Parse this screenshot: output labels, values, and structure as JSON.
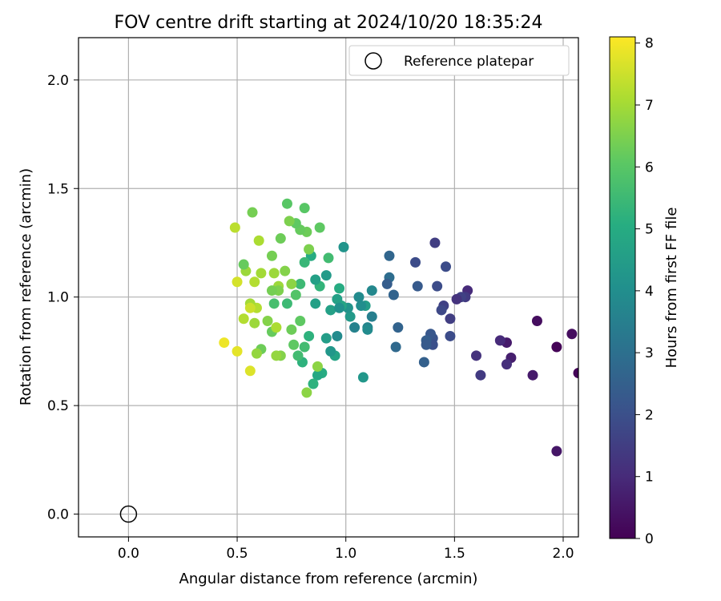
{
  "chart_data": {
    "type": "scatter",
    "title": "FOV centre drift starting at 2024/10/20 18:35:24",
    "xlabel": "Angular distance from reference (arcmin)",
    "ylabel": "Rotation from reference (arcmin)",
    "xlim": [
      -0.23,
      2.07
    ],
    "ylim": [
      -0.105,
      2.195
    ],
    "xticks": [
      "0.0",
      "0.5",
      "1.0",
      "1.5",
      "2.0"
    ],
    "xtick_values": [
      0.0,
      0.5,
      1.0,
      1.5,
      2.0
    ],
    "yticks": [
      "0.0",
      "0.5",
      "1.0",
      "1.5",
      "2.0"
    ],
    "ytick_values": [
      0.0,
      0.5,
      1.0,
      1.5,
      2.0
    ],
    "grid": true,
    "legend": {
      "position": "top-right",
      "label": "Reference platepar"
    },
    "reference_point": {
      "x": 0.0,
      "y": 0.0
    },
    "colorbar": {
      "label": "Hours from first FF file",
      "min": 0,
      "max": 8.1,
      "colormap": "viridis",
      "ticks": [
        "0",
        "1",
        "2",
        "3",
        "4",
        "5",
        "6",
        "7",
        "8"
      ],
      "tick_values": [
        0,
        1,
        2,
        3,
        4,
        5,
        6,
        7,
        8
      ]
    },
    "points": [
      {
        "x": 2.07,
        "y": 0.65,
        "c": 0.1
      },
      {
        "x": 2.04,
        "y": 0.83,
        "c": 0.3
      },
      {
        "x": 1.97,
        "y": 0.77,
        "c": 0.05
      },
      {
        "x": 1.97,
        "y": 0.29,
        "c": 0.5
      },
      {
        "x": 1.88,
        "y": 0.89,
        "c": 0.3
      },
      {
        "x": 1.86,
        "y": 0.64,
        "c": 0.6
      },
      {
        "x": 1.76,
        "y": 0.72,
        "c": 0.7
      },
      {
        "x": 1.74,
        "y": 0.79,
        "c": 0.6
      },
      {
        "x": 1.71,
        "y": 0.8,
        "c": 1.0
      },
      {
        "x": 1.74,
        "y": 0.69,
        "c": 1.1
      },
      {
        "x": 1.62,
        "y": 0.64,
        "c": 1.4
      },
      {
        "x": 1.6,
        "y": 0.73,
        "c": 1.2
      },
      {
        "x": 1.56,
        "y": 1.03,
        "c": 1.0
      },
      {
        "x": 1.55,
        "y": 1.0,
        "c": 1.4
      },
      {
        "x": 1.53,
        "y": 1.0,
        "c": 1.6
      },
      {
        "x": 1.51,
        "y": 0.99,
        "c": 1.2
      },
      {
        "x": 1.48,
        "y": 0.82,
        "c": 1.9
      },
      {
        "x": 1.48,
        "y": 0.9,
        "c": 1.5
      },
      {
        "x": 1.45,
        "y": 0.96,
        "c": 1.6
      },
      {
        "x": 1.44,
        "y": 0.94,
        "c": 1.8
      },
      {
        "x": 1.46,
        "y": 1.14,
        "c": 1.9
      },
      {
        "x": 1.41,
        "y": 1.25,
        "c": 1.5
      },
      {
        "x": 1.42,
        "y": 1.05,
        "c": 1.9
      },
      {
        "x": 1.4,
        "y": 0.81,
        "c": 2.1
      },
      {
        "x": 1.4,
        "y": 0.78,
        "c": 2.0
      },
      {
        "x": 1.39,
        "y": 0.83,
        "c": 2.2
      },
      {
        "x": 1.37,
        "y": 0.8,
        "c": 2.4
      },
      {
        "x": 1.37,
        "y": 0.78,
        "c": 2.3
      },
      {
        "x": 1.36,
        "y": 0.7,
        "c": 2.5
      },
      {
        "x": 1.32,
        "y": 1.16,
        "c": 1.9
      },
      {
        "x": 1.33,
        "y": 1.05,
        "c": 2.3
      },
      {
        "x": 1.24,
        "y": 0.86,
        "c": 2.6
      },
      {
        "x": 1.23,
        "y": 0.77,
        "c": 2.8
      },
      {
        "x": 1.22,
        "y": 1.01,
        "c": 2.6
      },
      {
        "x": 1.2,
        "y": 1.19,
        "c": 2.7
      },
      {
        "x": 1.2,
        "y": 1.09,
        "c": 2.9
      },
      {
        "x": 1.19,
        "y": 1.06,
        "c": 2.4
      },
      {
        "x": 1.12,
        "y": 1.03,
        "c": 3.8
      },
      {
        "x": 1.12,
        "y": 0.91,
        "c": 3.5
      },
      {
        "x": 1.1,
        "y": 0.86,
        "c": 3.7
      },
      {
        "x": 1.1,
        "y": 0.85,
        "c": 3.9
      },
      {
        "x": 1.09,
        "y": 0.96,
        "c": 4.5
      },
      {
        "x": 1.07,
        "y": 0.96,
        "c": 4.0
      },
      {
        "x": 1.08,
        "y": 0.63,
        "c": 4.3
      },
      {
        "x": 1.06,
        "y": 1.0,
        "c": 3.9
      },
      {
        "x": 1.04,
        "y": 0.86,
        "c": 3.6
      },
      {
        "x": 1.02,
        "y": 0.91,
        "c": 4.4
      },
      {
        "x": 1.01,
        "y": 0.95,
        "c": 4.2
      },
      {
        "x": 0.99,
        "y": 1.23,
        "c": 4.2
      },
      {
        "x": 0.98,
        "y": 0.96,
        "c": 4.8
      },
      {
        "x": 0.97,
        "y": 1.04,
        "c": 5.0
      },
      {
        "x": 0.96,
        "y": 0.99,
        "c": 4.6
      },
      {
        "x": 0.96,
        "y": 0.82,
        "c": 3.9
      },
      {
        "x": 0.95,
        "y": 0.73,
        "c": 4.7
      },
      {
        "x": 0.93,
        "y": 0.75,
        "c": 4.3
      },
      {
        "x": 0.93,
        "y": 0.94,
        "c": 4.6
      },
      {
        "x": 0.91,
        "y": 1.1,
        "c": 4.4
      },
      {
        "x": 0.91,
        "y": 0.81,
        "c": 4.5
      },
      {
        "x": 0.92,
        "y": 1.18,
        "c": 5.6
      },
      {
        "x": 0.89,
        "y": 0.65,
        "c": 5.0
      },
      {
        "x": 0.87,
        "y": 0.64,
        "c": 4.9
      },
      {
        "x": 0.88,
        "y": 1.05,
        "c": 5.3
      },
      {
        "x": 0.86,
        "y": 1.08,
        "c": 4.6
      },
      {
        "x": 0.86,
        "y": 0.97,
        "c": 4.6
      },
      {
        "x": 0.87,
        "y": 0.68,
        "c": 6.7
      },
      {
        "x": 0.88,
        "y": 1.32,
        "c": 6.1
      },
      {
        "x": 0.85,
        "y": 0.6,
        "c": 5.2
      },
      {
        "x": 0.83,
        "y": 0.82,
        "c": 5.2
      },
      {
        "x": 0.84,
        "y": 1.19,
        "c": 5.0
      },
      {
        "x": 0.83,
        "y": 1.22,
        "c": 6.5
      },
      {
        "x": 0.82,
        "y": 1.3,
        "c": 6.3
      },
      {
        "x": 0.81,
        "y": 1.41,
        "c": 6.0
      },
      {
        "x": 0.81,
        "y": 1.16,
        "c": 5.4
      },
      {
        "x": 0.81,
        "y": 0.77,
        "c": 5.6
      },
      {
        "x": 0.8,
        "y": 0.7,
        "c": 5.2
      },
      {
        "x": 0.82,
        "y": 0.56,
        "c": 6.7
      },
      {
        "x": 0.79,
        "y": 1.31,
        "c": 6.2
      },
      {
        "x": 0.79,
        "y": 1.06,
        "c": 5.5
      },
      {
        "x": 0.79,
        "y": 0.89,
        "c": 6.1
      },
      {
        "x": 0.78,
        "y": 0.73,
        "c": 5.6
      },
      {
        "x": 0.77,
        "y": 1.34,
        "c": 6.1
      },
      {
        "x": 0.77,
        "y": 1.01,
        "c": 5.9
      },
      {
        "x": 0.76,
        "y": 0.78,
        "c": 6.1
      },
      {
        "x": 0.75,
        "y": 0.85,
        "c": 6.3
      },
      {
        "x": 0.74,
        "y": 1.35,
        "c": 6.5
      },
      {
        "x": 0.73,
        "y": 1.43,
        "c": 6.0
      },
      {
        "x": 0.73,
        "y": 0.97,
        "c": 5.5
      },
      {
        "x": 0.72,
        "y": 1.12,
        "c": 6.6
      },
      {
        "x": 0.7,
        "y": 1.27,
        "c": 6.3
      },
      {
        "x": 0.7,
        "y": 0.73,
        "c": 6.6
      },
      {
        "x": 0.69,
        "y": 1.05,
        "c": 6.9
      },
      {
        "x": 0.69,
        "y": 1.03,
        "c": 6.5
      },
      {
        "x": 0.67,
        "y": 1.11,
        "c": 6.9
      },
      {
        "x": 0.67,
        "y": 0.97,
        "c": 5.7
      },
      {
        "x": 0.66,
        "y": 1.19,
        "c": 6.4
      },
      {
        "x": 0.66,
        "y": 1.03,
        "c": 6.4
      },
      {
        "x": 0.66,
        "y": 0.84,
        "c": 6.2
      },
      {
        "x": 0.64,
        "y": 0.89,
        "c": 6.6
      },
      {
        "x": 0.61,
        "y": 1.11,
        "c": 7.0
      },
      {
        "x": 0.61,
        "y": 0.76,
        "c": 6.3
      },
      {
        "x": 0.6,
        "y": 1.26,
        "c": 7.1
      },
      {
        "x": 0.59,
        "y": 0.74,
        "c": 6.8
      },
      {
        "x": 0.59,
        "y": 0.95,
        "c": 7.2
      },
      {
        "x": 0.58,
        "y": 0.88,
        "c": 6.9
      },
      {
        "x": 0.58,
        "y": 1.07,
        "c": 7.2
      },
      {
        "x": 0.57,
        "y": 1.39,
        "c": 6.4
      },
      {
        "x": 0.56,
        "y": 0.97,
        "c": 7.0
      },
      {
        "x": 0.56,
        "y": 0.66,
        "c": 7.7
      },
      {
        "x": 0.56,
        "y": 0.95,
        "c": 7.5
      },
      {
        "x": 0.54,
        "y": 1.12,
        "c": 6.9
      },
      {
        "x": 0.53,
        "y": 1.15,
        "c": 6.2
      },
      {
        "x": 0.53,
        "y": 0.9,
        "c": 7.2
      },
      {
        "x": 0.5,
        "y": 1.07,
        "c": 7.6
      },
      {
        "x": 0.49,
        "y": 1.32,
        "c": 7.3
      },
      {
        "x": 0.5,
        "y": 0.75,
        "c": 7.8
      },
      {
        "x": 0.44,
        "y": 0.79,
        "c": 7.9
      },
      {
        "x": 0.68,
        "y": 0.73,
        "c": 6.8
      },
      {
        "x": 0.68,
        "y": 0.86,
        "c": 7.1
      },
      {
        "x": 0.75,
        "y": 1.06,
        "c": 6.7
      },
      {
        "x": 0.97,
        "y": 0.95,
        "c": 4.1
      }
    ]
  }
}
